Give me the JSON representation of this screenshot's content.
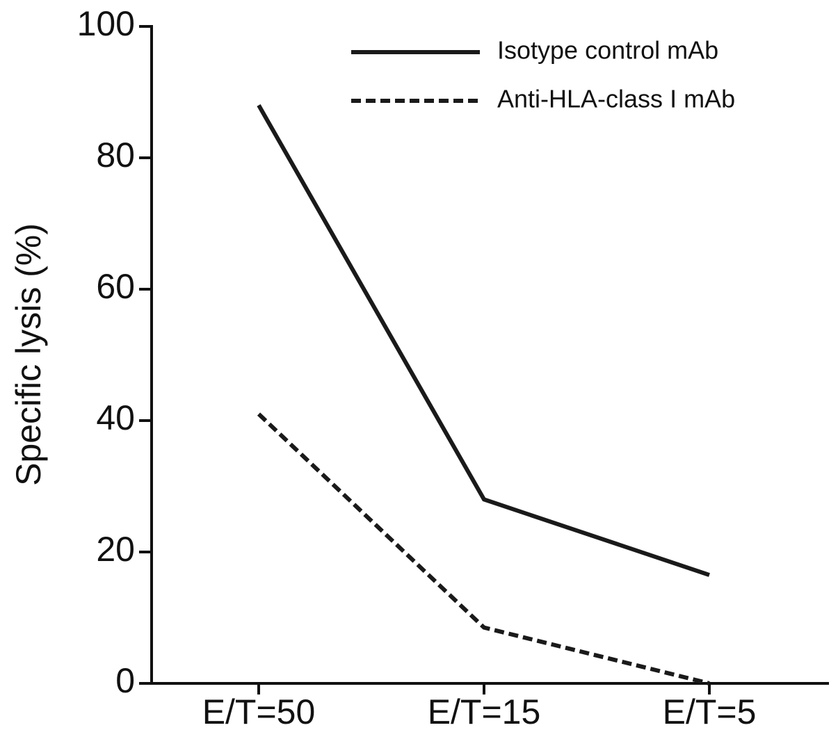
{
  "chart_data": {
    "type": "line",
    "y_label": "Specific lysis (%)",
    "categories": [
      "E/T=50",
      "E/T=15",
      "E/T=5"
    ],
    "series": [
      {
        "name": "Isotype control mAb",
        "color": "#1a1a1a",
        "dash": "solid",
        "values": [
          88,
          28,
          16.5
        ]
      },
      {
        "name": "Anti-HLA-class I mAb",
        "color": "#1a1a1a",
        "dash": "dashed",
        "values": [
          41,
          8.5,
          0
        ]
      }
    ],
    "ylim": [
      0,
      100
    ],
    "yticks": [
      0,
      20,
      40,
      60,
      80,
      100
    ],
    "grid": false,
    "legend": "top-right"
  }
}
